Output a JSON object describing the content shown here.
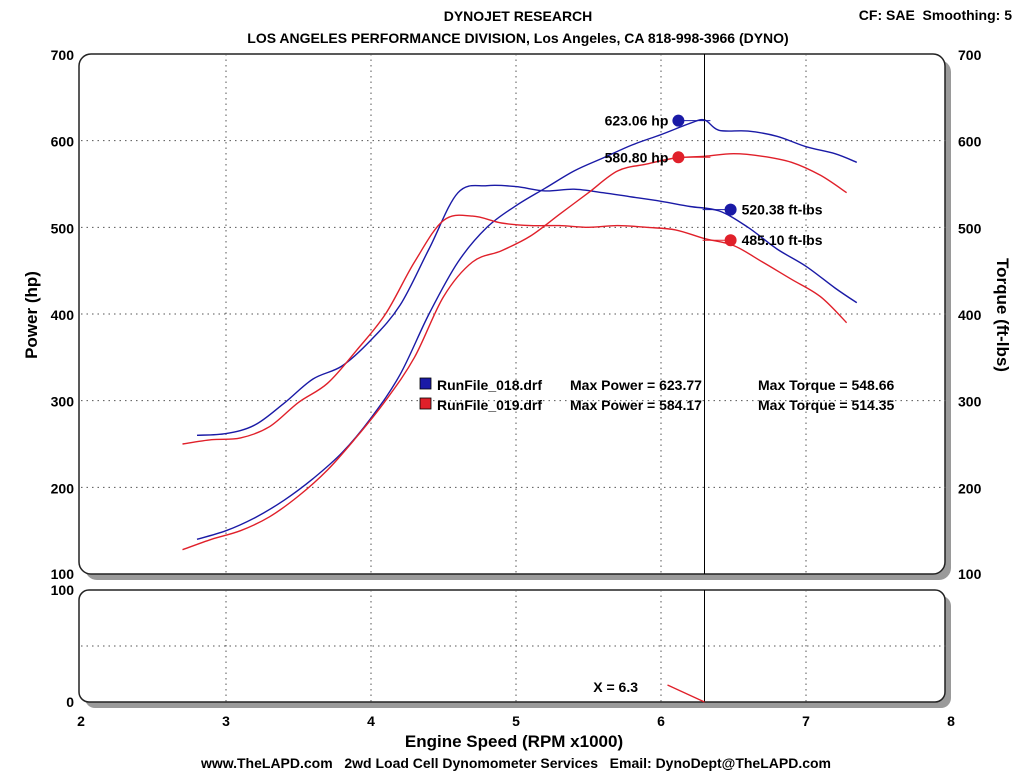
{
  "header": {
    "title": "DYNOJET RESEARCH",
    "subtitle": "LOS ANGELES PERFORMANCE DIVISION, Los Angeles, CA 818-998-3966 (DYNO)",
    "settings": "CF: SAE  Smoothing: 5"
  },
  "footer": {
    "text": "www.TheLAPD.com   2wd Load Cell Dynomometer Services   Email: DynoDept@TheLAPD.com"
  },
  "colors": {
    "run018": "#1a1aa6",
    "run019": "#e0202a",
    "cursor": "#000000"
  },
  "chart_data": {
    "type": "line",
    "title": "DYNOJET RESEARCH",
    "xlabel": "Engine Speed (RPM x1000)",
    "ylabel": "Power (hp)",
    "ylabel_right": "Torque (ft-lbs)",
    "xlim": [
      2,
      8
    ],
    "ylim": [
      100,
      700
    ],
    "ylim_right": [
      100,
      700
    ],
    "x_ticks": [
      "2",
      "3",
      "4",
      "5",
      "6",
      "7",
      "8"
    ],
    "y_ticks": [
      "100",
      "200",
      "300",
      "400",
      "500",
      "600",
      "700"
    ],
    "lower_panel": {
      "ylim": [
        0,
        100
      ],
      "y_ticks": [
        "0",
        "100"
      ],
      "cursor_label": "X = 6.3"
    },
    "cursor_x": 6.3,
    "legend": [
      {
        "name": "RunFile_018.drf",
        "max_power": "Max Power = 623.77",
        "max_torque": "Max Torque = 548.66"
      },
      {
        "name": "RunFile_019.drf",
        "max_power": "Max Power = 584.17",
        "max_torque": "Max Torque = 514.35"
      }
    ],
    "series": [
      {
        "name": "RunFile_018 Power",
        "run": "018",
        "x": [
          2.8,
          3.0,
          3.2,
          3.4,
          3.6,
          3.8,
          4.0,
          4.2,
          4.4,
          4.6,
          4.8,
          5.0,
          5.2,
          5.4,
          5.6,
          5.8,
          6.0,
          6.2,
          6.3,
          6.4,
          6.6,
          6.8,
          7.0,
          7.2,
          7.35
        ],
        "y": [
          140,
          150,
          165,
          185,
          210,
          240,
          280,
          330,
          400,
          460,
          500,
          525,
          545,
          565,
          580,
          595,
          607,
          620,
          624,
          612,
          611,
          605,
          593,
          585,
          575
        ]
      },
      {
        "name": "RunFile_018 Torque",
        "run": "018",
        "x": [
          2.8,
          3.0,
          3.2,
          3.4,
          3.6,
          3.8,
          4.0,
          4.2,
          4.4,
          4.6,
          4.8,
          5.0,
          5.2,
          5.4,
          5.6,
          5.8,
          6.0,
          6.2,
          6.4,
          6.6,
          6.8,
          7.0,
          7.2,
          7.35
        ],
        "y": [
          260,
          262,
          272,
          297,
          325,
          340,
          370,
          410,
          475,
          540,
          548,
          547,
          542,
          544,
          540,
          535,
          530,
          524,
          519,
          500,
          475,
          455,
          430,
          413
        ]
      },
      {
        "name": "RunFile_019 Power",
        "run": "019",
        "x": [
          2.7,
          2.9,
          3.1,
          3.3,
          3.5,
          3.7,
          3.9,
          4.1,
          4.3,
          4.5,
          4.7,
          4.9,
          5.1,
          5.3,
          5.5,
          5.7,
          5.9,
          6.1,
          6.3,
          6.5,
          6.7,
          6.9,
          7.1,
          7.28
        ],
        "y": [
          128,
          140,
          150,
          166,
          190,
          220,
          258,
          300,
          350,
          420,
          460,
          473,
          490,
          515,
          540,
          565,
          573,
          580,
          582,
          585,
          582,
          575,
          560,
          540
        ]
      },
      {
        "name": "RunFile_019 Torque",
        "run": "019",
        "x": [
          2.7,
          2.9,
          3.1,
          3.3,
          3.5,
          3.7,
          3.9,
          4.1,
          4.3,
          4.5,
          4.7,
          4.9,
          5.1,
          5.3,
          5.5,
          5.7,
          5.9,
          6.1,
          6.3,
          6.5,
          6.7,
          6.9,
          7.1,
          7.28
        ],
        "y": [
          250,
          255,
          257,
          270,
          298,
          320,
          358,
          400,
          460,
          508,
          513,
          505,
          502,
          502,
          500,
          502,
          500,
          497,
          487,
          479,
          460,
          440,
          420,
          390
        ]
      }
    ],
    "annotations": [
      {
        "label": "623.06 hp",
        "x": 6.12,
        "y": 623.06,
        "run": "018",
        "side": "left"
      },
      {
        "label": "580.80 hp",
        "x": 6.12,
        "y": 580.8,
        "run": "019",
        "side": "left"
      },
      {
        "label": "520.38 ft-lbs",
        "x": 6.48,
        "y": 520.38,
        "run": "018",
        "side": "right"
      },
      {
        "label": "485.10 ft-lbs",
        "x": 6.48,
        "y": 485.1,
        "run": "019",
        "side": "right"
      }
    ]
  }
}
